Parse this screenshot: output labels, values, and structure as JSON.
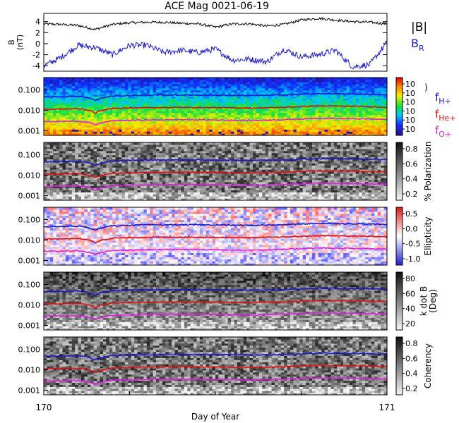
{
  "title": "ACE Mag 0021-06-19",
  "colors": {
    "black": "#000000",
    "blue": "#1a1acc",
    "red": "#e01010",
    "magenta": "#e020e0"
  },
  "chart_data": [
    {
      "type": "line",
      "panel": "magnetic field",
      "ylabel": "B (nT)",
      "ylim": [
        -5,
        5.5
      ],
      "yticks": [
        4,
        2,
        0,
        -2,
        -4
      ],
      "ytick_labels": [
        "4",
        "2",
        "0",
        "-2",
        "-4"
      ],
      "xlim": [
        170,
        171
      ],
      "legend": [
        "|B|",
        "B_R"
      ],
      "series": [
        {
          "name": "|B|",
          "color": "#000000",
          "x": [
            170.0,
            170.05,
            170.1,
            170.15,
            170.2,
            170.25,
            170.3,
            170.35,
            170.4,
            170.45,
            170.5,
            170.55,
            170.6,
            170.65,
            170.7,
            170.75,
            170.8,
            170.85,
            170.9,
            170.95,
            171.0
          ],
          "values": [
            3.6,
            3.5,
            3.3,
            2.6,
            3.5,
            3.8,
            3.9,
            3.9,
            3.7,
            3.6,
            3.0,
            3.6,
            3.6,
            3.2,
            3.5,
            4.3,
            4.6,
            4.3,
            4.0,
            3.9,
            3.6
          ]
        },
        {
          "name": "B_R",
          "color": "#1a1acc",
          "x": [
            170.0,
            170.05,
            170.1,
            170.15,
            170.2,
            170.25,
            170.3,
            170.35,
            170.4,
            170.45,
            170.5,
            170.55,
            170.6,
            170.65,
            170.7,
            170.75,
            170.8,
            170.85,
            170.9,
            170.95,
            171.0
          ],
          "values": [
            -4.0,
            -2.5,
            -0.3,
            -0.7,
            -2.0,
            -0.3,
            -0.3,
            -1.6,
            -1.2,
            -1.6,
            -1.0,
            -3.0,
            -2.8,
            -3.3,
            -1.0,
            -2.4,
            -2.0,
            -1.2,
            -4.2,
            -3.8,
            0.2
          ]
        }
      ]
    },
    {
      "type": "heatmap",
      "panel": "power",
      "yscale": "log",
      "ylim": [
        0.0006,
        0.4
      ],
      "yticks": [
        0.1,
        0.01,
        0.001
      ],
      "ytick_labels": [
        "0.100",
        "0.010",
        "0.001"
      ],
      "colorbar": "rainbow",
      "colorbar_ticks": [
        "10",
        "10",
        "10",
        "10",
        "10",
        "10"
      ],
      "colorbar_label": ")"
    },
    {
      "type": "heatmap",
      "panel": "polarization",
      "yscale": "log",
      "yticks": [
        0.1,
        0.01,
        0.001
      ],
      "ytick_labels": [
        "0.100",
        "0.010",
        "0.001"
      ],
      "colorbar": "gray",
      "colorbar_label": "% Polarization",
      "colorbar_ticks": [
        "0.8",
        "0.6",
        "0.4",
        "0.2"
      ]
    },
    {
      "type": "heatmap",
      "panel": "ellipticity",
      "yscale": "log",
      "yticks": [
        0.1,
        0.01,
        0.001
      ],
      "ytick_labels": [
        "0.100",
        "0.010",
        "0.001"
      ],
      "colorbar": "blue-white-red",
      "colorbar_label": "Ellipticity",
      "colorbar_ticks": [
        "0.5",
        "0.0",
        "-0.5",
        "-1.0"
      ]
    },
    {
      "type": "heatmap",
      "panel": "wave angle",
      "yscale": "log",
      "yticks": [
        0.1,
        0.01,
        0.001
      ],
      "ytick_labels": [
        "0.100",
        "0.010",
        "0.001"
      ],
      "colorbar": "gray",
      "colorbar_label": "k dot B (Deg)",
      "colorbar_label_lines": [
        "k dot B",
        "(Deg)"
      ],
      "colorbar_ticks": [
        "80",
        "60",
        "40",
        "20"
      ]
    },
    {
      "type": "heatmap",
      "panel": "coherency",
      "yscale": "log",
      "yticks": [
        0.1,
        0.01,
        0.001
      ],
      "ytick_labels": [
        "0.100",
        "0.010",
        "0.001"
      ],
      "colorbar": "gray",
      "colorbar_label": "Coherency",
      "colorbar_ticks": [
        "0.8",
        "0.6",
        "0.4",
        "0.2"
      ]
    }
  ],
  "cyclotron_lines": {
    "legend": [
      "f_H+",
      "f_He+",
      "f_O+"
    ],
    "x": [
      170.0,
      170.1,
      170.13,
      170.15,
      170.16,
      170.2,
      170.3,
      170.4,
      170.5,
      170.6,
      170.7,
      170.8,
      170.9,
      171.0
    ],
    "fH": [
      0.045,
      0.048,
      0.041,
      0.03,
      0.036,
      0.05,
      0.055,
      0.056,
      0.055,
      0.052,
      0.056,
      0.066,
      0.063,
      0.058
    ],
    "fHe": [
      0.0112,
      0.012,
      0.0102,
      0.0075,
      0.009,
      0.0125,
      0.0137,
      0.014,
      0.0137,
      0.013,
      0.014,
      0.0165,
      0.0157,
      0.0145
    ],
    "fO": [
      0.0028,
      0.003,
      0.0026,
      0.0019,
      0.0023,
      0.0031,
      0.0034,
      0.0035,
      0.0034,
      0.0032,
      0.0035,
      0.0041,
      0.0039,
      0.0036
    ]
  },
  "x_axis": {
    "label": "Day of Year",
    "range": [
      170,
      171
    ],
    "tick_labels": [
      "170",
      "171"
    ]
  },
  "legend_labels": {
    "bmag": "|B|",
    "br_main": "B",
    "br_sub": "R",
    "fh_main": "f",
    "fh_sub": "H+",
    "fhe_main": "f",
    "fhe_sub": "He+",
    "fo_main": "f",
    "fo_sub": "O+"
  }
}
